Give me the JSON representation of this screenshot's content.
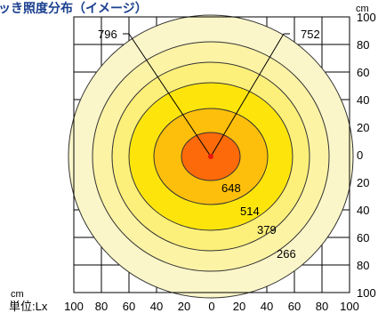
{
  "header": {
    "title_fragment": "ッき照度分布（イメージ）"
  },
  "units": {
    "top_right_cm": "cm",
    "bottom_left_cm": "cm",
    "bottom_left_label": "単位:Lx"
  },
  "axes": {
    "x_ticks": [
      "100",
      "80",
      "60",
      "40",
      "20",
      "0",
      "20",
      "40",
      "60",
      "80",
      "100"
    ],
    "y_ticks": [
      "100",
      "80",
      "60",
      "40",
      "20",
      "0",
      "20",
      "40",
      "60",
      "80",
      "100"
    ]
  },
  "contours": [
    {
      "label": "",
      "color": "#fbf6c9"
    },
    {
      "label": "266",
      "color": "#fcf3a5"
    },
    {
      "label": "379",
      "color": "#fdf07a"
    },
    {
      "label": "514",
      "color": "#fde50c"
    },
    {
      "label": "648",
      "color": "#fdbf0b"
    },
    {
      "label": "",
      "color": "#fd6a09"
    }
  ],
  "callouts": {
    "left": "796",
    "right": "752"
  },
  "colors": {
    "center_dot": "#e8160b",
    "grid": "#000000",
    "outline": "#333333"
  },
  "chart_data": {
    "type": "heatmap",
    "title": "ッき照度分布（イメージ）",
    "xlabel": "cm",
    "ylabel": "cm",
    "unit": "Lx",
    "x_range": [
      -100,
      100
    ],
    "y_range": [
      -100,
      100
    ],
    "levels": [
      266,
      379,
      514,
      648
    ],
    "peak_values": [
      796,
      752
    ]
  }
}
